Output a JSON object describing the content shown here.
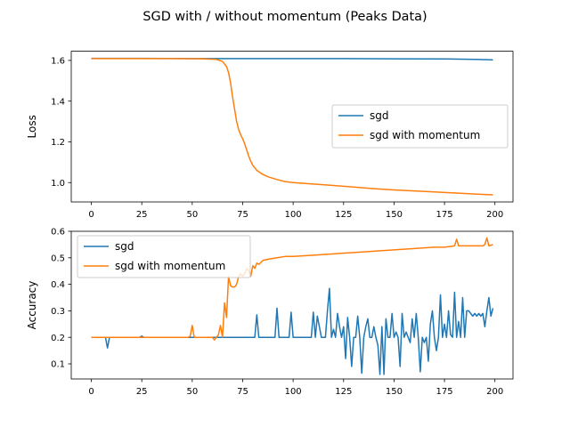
{
  "figure_title": "SGD with / without momentum (Peaks Data)",
  "chart_data": [
    {
      "type": "line",
      "title": "",
      "xlabel": "",
      "ylabel": "Loss",
      "xlim": [
        -9.95,
        208.95
      ],
      "ylim": [
        0.905,
        1.645
      ],
      "xticks": [
        0,
        25,
        50,
        75,
        100,
        125,
        150,
        175,
        200
      ],
      "xtick_labels": [
        "0",
        "25",
        "50",
        "75",
        "100",
        "125",
        "150",
        "175",
        "200"
      ],
      "yticks": [
        1.0,
        1.2,
        1.4,
        1.6
      ],
      "ytick_labels": [
        "1.0",
        "1.2",
        "1.4",
        "1.6"
      ],
      "grid": false,
      "legend_position": "center-right",
      "series": [
        {
          "name": "sgd",
          "color": "#1f77b4",
          "x": [
            0,
            25,
            50,
            75,
            100,
            125,
            150,
            175,
            190,
            199
          ],
          "y": [
            1.61,
            1.61,
            1.609,
            1.609,
            1.609,
            1.609,
            1.608,
            1.607,
            1.605,
            1.603
          ]
        },
        {
          "name": "sgd with momentum",
          "color": "#ff7f0e",
          "x": [
            0,
            20,
            40,
            55,
            62,
            65,
            67,
            68,
            69,
            70,
            71,
            72,
            73,
            74,
            75,
            76,
            77,
            78,
            79,
            80,
            82,
            85,
            88,
            92,
            96,
            100,
            110,
            120,
            130,
            140,
            150,
            160,
            170,
            180,
            190,
            199
          ],
          "y": [
            1.609,
            1.609,
            1.609,
            1.608,
            1.605,
            1.595,
            1.57,
            1.54,
            1.49,
            1.42,
            1.36,
            1.3,
            1.26,
            1.235,
            1.215,
            1.19,
            1.16,
            1.13,
            1.105,
            1.085,
            1.06,
            1.04,
            1.027,
            1.015,
            1.005,
            1.0,
            0.993,
            0.986,
            0.978,
            0.97,
            0.964,
            0.959,
            0.954,
            0.949,
            0.944,
            0.94
          ]
        }
      ]
    },
    {
      "type": "line",
      "title": "",
      "xlabel": "",
      "ylabel": "Accuracy",
      "xlim": [
        -9.95,
        208.95
      ],
      "ylim": [
        0.043,
        0.6
      ],
      "xticks": [
        0,
        25,
        50,
        75,
        100,
        125,
        150,
        175,
        200
      ],
      "xtick_labels": [
        "0",
        "25",
        "50",
        "75",
        "100",
        "125",
        "150",
        "175",
        "200"
      ],
      "yticks": [
        0.1,
        0.2,
        0.3,
        0.4,
        0.5,
        0.6
      ],
      "ytick_labels": [
        "0.1",
        "0.2",
        "0.3",
        "0.4",
        "0.5",
        "0.6"
      ],
      "grid": false,
      "legend_position": "upper-left",
      "series": [
        {
          "name": "sgd",
          "color": "#1f77b4",
          "x": [
            0,
            7,
            8,
            9,
            10,
            24,
            25,
            26,
            81,
            82,
            83,
            91,
            92,
            93,
            98,
            99,
            100,
            109,
            110,
            111,
            112,
            113,
            114,
            116,
            117,
            118,
            119,
            120,
            121,
            122,
            123,
            124,
            125,
            126,
            127,
            128,
            129,
            130,
            131,
            132,
            133,
            134,
            135,
            136,
            137,
            138,
            139,
            140,
            141,
            142,
            143,
            144,
            145,
            146,
            147,
            148,
            149,
            150,
            151,
            152,
            153,
            154,
            155,
            156,
            157,
            158,
            159,
            160,
            161,
            162,
            163,
            164,
            165,
            166,
            167,
            168,
            169,
            170,
            171,
            172,
            173,
            174,
            175,
            176,
            177,
            178,
            179,
            180,
            181,
            182,
            183,
            184,
            185,
            186,
            187,
            188,
            189,
            190,
            191,
            192,
            193,
            194,
            195,
            196,
            197,
            198,
            199
          ],
          "y": [
            0.2,
            0.2,
            0.16,
            0.2,
            0.2,
            0.2,
            0.205,
            0.2,
            0.2,
            0.285,
            0.2,
            0.2,
            0.31,
            0.2,
            0.2,
            0.295,
            0.2,
            0.2,
            0.295,
            0.2,
            0.28,
            0.24,
            0.2,
            0.2,
            0.3,
            0.385,
            0.2,
            0.23,
            0.2,
            0.29,
            0.24,
            0.2,
            0.24,
            0.12,
            0.275,
            0.2,
            0.09,
            0.2,
            0.2,
            0.28,
            0.2,
            0.065,
            0.2,
            0.24,
            0.27,
            0.2,
            0.2,
            0.24,
            0.2,
            0.17,
            0.06,
            0.24,
            0.06,
            0.27,
            0.2,
            0.2,
            0.29,
            0.2,
            0.22,
            0.2,
            0.09,
            0.29,
            0.2,
            0.22,
            0.2,
            0.18,
            0.27,
            0.2,
            0.29,
            0.2,
            0.07,
            0.2,
            0.18,
            0.2,
            0.11,
            0.25,
            0.3,
            0.2,
            0.15,
            0.2,
            0.36,
            0.2,
            0.25,
            0.2,
            0.3,
            0.21,
            0.2,
            0.37,
            0.2,
            0.26,
            0.2,
            0.35,
            0.2,
            0.3,
            0.3,
            0.29,
            0.28,
            0.29,
            0.28,
            0.29,
            0.28,
            0.29,
            0.24,
            0.3,
            0.35,
            0.28,
            0.31
          ]
        },
        {
          "name": "sgd with momentum",
          "color": "#ff7f0e",
          "x": [
            0,
            48,
            49,
            50,
            51,
            60,
            61,
            62,
            63,
            64,
            65,
            66,
            67,
            68,
            69,
            70,
            71,
            72,
            73,
            74,
            75,
            76,
            77,
            78,
            79,
            80,
            81,
            82,
            83,
            85,
            88,
            92,
            96,
            100,
            110,
            120,
            130,
            140,
            150,
            160,
            170,
            175,
            180,
            181,
            182,
            190,
            194,
            195,
            196,
            197,
            199
          ],
          "y": [
            0.2,
            0.2,
            0.205,
            0.245,
            0.2,
            0.2,
            0.19,
            0.2,
            0.21,
            0.245,
            0.2,
            0.33,
            0.275,
            0.43,
            0.395,
            0.39,
            0.39,
            0.4,
            0.43,
            0.44,
            0.43,
            0.44,
            0.46,
            0.45,
            0.43,
            0.47,
            0.46,
            0.48,
            0.475,
            0.49,
            0.495,
            0.5,
            0.505,
            0.505,
            0.51,
            0.515,
            0.52,
            0.525,
            0.53,
            0.535,
            0.54,
            0.54,
            0.545,
            0.57,
            0.545,
            0.545,
            0.545,
            0.55,
            0.575,
            0.545,
            0.55
          ]
        }
      ]
    }
  ]
}
